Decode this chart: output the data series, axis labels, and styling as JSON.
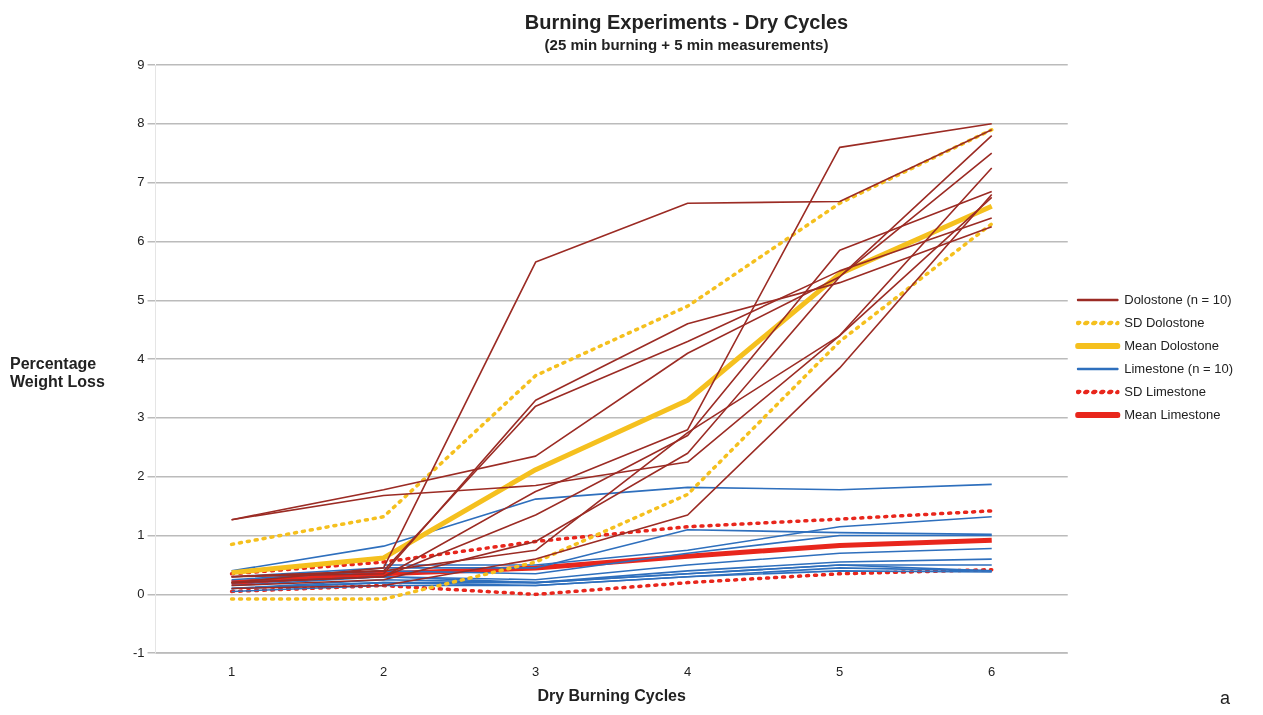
{
  "chart_data": {
    "type": "line",
    "title": "Burning Experiments - Dry Cycles",
    "subtitle": "(25 min burning + 5 min measurements)",
    "xlabel": "Dry Burning Cycles",
    "ylabel": "Percentage Weight Loss",
    "annotations": [
      "a"
    ],
    "categories": [
      "1",
      "2",
      "3",
      "4",
      "5",
      "6"
    ],
    "ylim": [
      -1,
      9
    ],
    "yticks": [
      -1,
      0,
      1,
      2,
      3,
      4,
      5,
      6,
      7,
      8,
      9
    ],
    "grid": "y",
    "legend": "right",
    "marker": "none",
    "series": [
      {
        "name": "Dolostone (n = 10)",
        "color": "#9b2b24",
        "line_style": "solid",
        "values": [
          1.27,
          1.78,
          2.35,
          4.1,
          5.4,
          7.8
        ]
      },
      {
        "color": "#9b2b24",
        "line_style": "solid",
        "values": [
          1.27,
          1.68,
          1.85,
          2.25,
          4.4,
          7.25
        ]
      },
      {
        "color": "#9b2b24",
        "line_style": "solid",
        "values": [
          0.2,
          0.45,
          5.65,
          6.65,
          6.68,
          7.9
        ]
      },
      {
        "color": "#9b2b24",
        "line_style": "solid",
        "values": [
          0.3,
          0.35,
          3.3,
          4.6,
          5.3,
          6.25
        ]
      },
      {
        "color": "#9b2b24",
        "line_style": "solid",
        "values": [
          0.3,
          0.4,
          3.2,
          4.3,
          5.5,
          6.4
        ]
      },
      {
        "color": "#9b2b24",
        "line_style": "solid",
        "values": [
          0.2,
          0.3,
          1.75,
          2.8,
          7.6,
          8.0
        ]
      },
      {
        "color": "#9b2b24",
        "line_style": "solid",
        "values": [
          0.2,
          0.3,
          1.35,
          2.7,
          5.85,
          6.85
        ]
      },
      {
        "color": "#9b2b24",
        "line_style": "solid",
        "values": [
          0.15,
          0.25,
          0.9,
          2.4,
          5.4,
          7.5
        ]
      },
      {
        "color": "#9b2b24",
        "line_style": "solid",
        "values": [
          0.1,
          0.15,
          0.6,
          1.35,
          3.85,
          6.8
        ]
      },
      {
        "color": "#9b2b24",
        "line_style": "solid",
        "values": [
          0.3,
          0.4,
          0.75,
          2.75,
          4.4,
          6.75
        ]
      },
      {
        "name": "SD Dolostone",
        "color": "#f5c01e",
        "line_style": "dotted",
        "values": [
          0.85,
          1.32,
          3.72,
          4.9,
          6.65,
          7.9
        ]
      },
      {
        "name": "Mean Dolostone",
        "color": "#f5c01e",
        "line_style": "solid",
        "values": [
          0.37,
          0.62,
          2.12,
          3.3,
          5.45,
          6.6
        ]
      },
      {
        "color": "#f5c01e",
        "line_style": "dotted",
        "values": [
          -0.08,
          -0.08,
          0.55,
          1.7,
          4.3,
          6.3
        ]
      },
      {
        "name": "Limestone (n = 10)",
        "color": "#2e6fbd",
        "line_style": "solid",
        "values": [
          0.4,
          0.82,
          1.62,
          1.82,
          1.78,
          1.87
        ]
      },
      {
        "color": "#2e6fbd",
        "line_style": "solid",
        "values": [
          null,
          0.5,
          0.5,
          0.75,
          1.15,
          1.32
        ]
      },
      {
        "color": "#2e6fbd",
        "line_style": "solid",
        "values": [
          0.3,
          0.45,
          0.45,
          1.1,
          1.05,
          1.02
        ]
      },
      {
        "color": "#2e6fbd",
        "line_style": "solid",
        "values": [
          0.25,
          0.4,
          0.35,
          0.7,
          1.0,
          1.0
        ]
      },
      {
        "color": "#2e6fbd",
        "line_style": "solid",
        "values": [
          0.2,
          0.3,
          0.25,
          0.5,
          0.7,
          0.78
        ]
      },
      {
        "color": "#2e6fbd",
        "line_style": "solid",
        "values": [
          0.15,
          0.3,
          0.2,
          0.4,
          0.55,
          0.6
        ]
      },
      {
        "color": "#2e6fbd",
        "line_style": "solid",
        "values": [
          0.1,
          0.25,
          0.2,
          0.35,
          0.5,
          0.5
        ]
      },
      {
        "color": "#2e6fbd",
        "line_style": "solid",
        "values": [
          0.1,
          0.2,
          0.15,
          0.3,
          0.45,
          0.4
        ]
      },
      {
        "color": "#2e6fbd",
        "line_style": "solid",
        "values": [
          0.05,
          0.15,
          0.15,
          0.3,
          0.4,
          0.38
        ]
      },
      {
        "color": "#2e6fbd",
        "line_style": "solid",
        "values": [
          0.1,
          0.2,
          0.2,
          0.35,
          0.5,
          0.4
        ]
      },
      {
        "name": "SD Limestone",
        "color": "#e8261c",
        "line_style": "dotted",
        "values": [
          0.35,
          0.55,
          0.9,
          1.15,
          1.28,
          1.42
        ]
      },
      {
        "name": "Mean Limestone",
        "color": "#e8261c",
        "line_style": "solid",
        "values": [
          0.2,
          0.35,
          0.45,
          0.65,
          0.83,
          0.92
        ]
      },
      {
        "color": "#e8261c",
        "line_style": "dotted",
        "values": [
          0.05,
          0.15,
          0.0,
          0.2,
          0.35,
          0.42
        ]
      }
    ]
  }
}
